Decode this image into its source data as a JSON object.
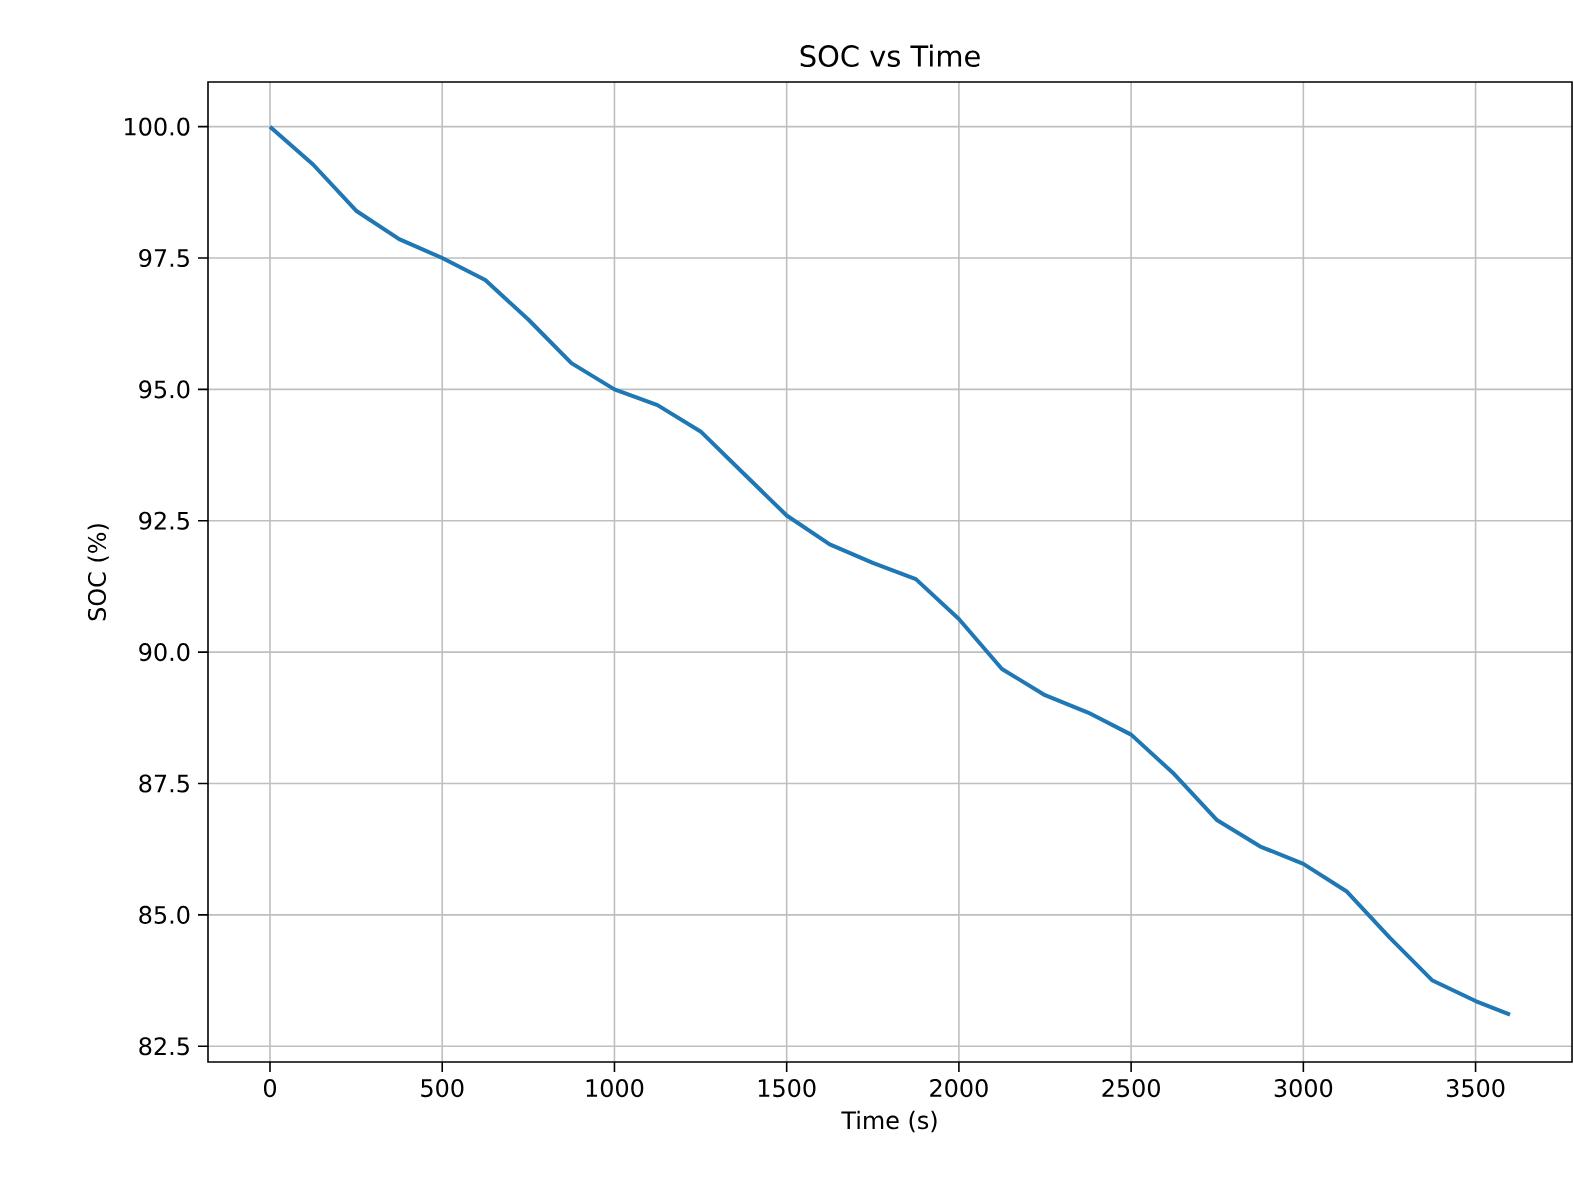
{
  "chart_data": {
    "type": "line",
    "title": "SOC vs Time",
    "xlabel": "Time (s)",
    "ylabel": "SOC (%)",
    "x": [
      0,
      125,
      250,
      375,
      500,
      625,
      750,
      875,
      1000,
      1125,
      1250,
      1375,
      1500,
      1625,
      1750,
      1875,
      2000,
      2125,
      2250,
      2375,
      2500,
      2625,
      2750,
      2875,
      3000,
      3125,
      3250,
      3375,
      3500,
      3600
    ],
    "series": [
      {
        "color": "#1f77b4",
        "values": [
          100.0,
          99.28,
          98.4,
          97.86,
          97.5,
          97.08,
          96.33,
          95.5,
          95.0,
          94.7,
          94.2,
          93.4,
          92.6,
          92.05,
          91.7,
          91.39,
          90.63,
          89.68,
          89.18,
          88.85,
          88.43,
          87.68,
          86.8,
          86.3,
          85.97,
          85.45,
          84.57,
          83.75,
          83.36,
          83.1
        ]
      }
    ],
    "xlim": [
      -180,
      3780
    ],
    "ylim": [
      82.2,
      100.85
    ],
    "xticks": [
      0,
      500,
      1000,
      1500,
      2000,
      2500,
      3000,
      3500
    ],
    "yticks": [
      82.5,
      {
        "value": 85,
        "label": "85.0"
      },
      87.5,
      {
        "value": 90,
        "label": "90.0"
      },
      92.5,
      {
        "value": 95,
        "label": "95.0"
      },
      97.5,
      {
        "value": 100,
        "label": "100.0"
      }
    ],
    "grid": true
  }
}
